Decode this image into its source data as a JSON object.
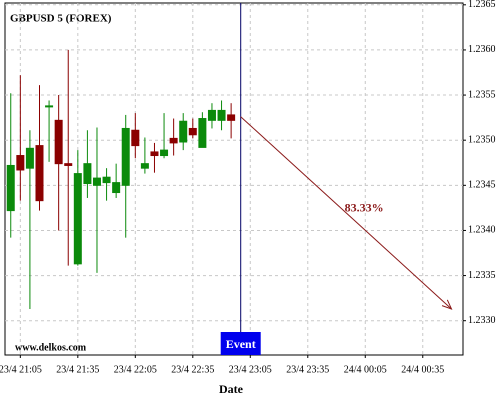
{
  "chart_data": {
    "type": "candlestick",
    "title": "GBPUSD 5 (FOREX)",
    "xlabel": "Date",
    "watermark": "www.delkos.com",
    "x": [
      "23/4 21:00",
      "23/4 21:05",
      "23/4 21:10",
      "23/4 21:15",
      "23/4 21:20",
      "23/4 21:25",
      "23/4 21:30",
      "23/4 21:35",
      "23/4 21:40",
      "23/4 21:45",
      "23/4 21:50",
      "23/4 21:55",
      "23/4 22:00",
      "23/4 22:05",
      "23/4 22:10",
      "23/4 22:15",
      "23/4 22:20",
      "23/4 22:25",
      "23/4 22:30",
      "23/4 22:35",
      "23/4 22:40",
      "23/4 22:45",
      "23/4 22:50",
      "23/4 22:55"
    ],
    "open": [
      1.23422,
      1.23483,
      1.23469,
      1.23494,
      1.23537,
      1.23522,
      1.23474,
      1.23363,
      1.23452,
      1.2345,
      1.23453,
      1.23442,
      1.2345,
      1.23511,
      1.23469,
      1.23487,
      1.23483,
      1.23502,
      1.23498,
      1.23513,
      1.23492,
      1.23522,
      1.23522,
      1.23528
    ],
    "high": [
      1.23552,
      1.23572,
      1.23511,
      1.23561,
      1.23544,
      1.2355,
      1.236,
      1.23489,
      1.23511,
      1.23514,
      1.23469,
      1.23474,
      1.23528,
      1.2353,
      1.23503,
      1.23497,
      1.2353,
      1.23524,
      1.2353,
      1.23524,
      1.23531,
      1.23541,
      1.23544,
      1.23541
    ],
    "low": [
      1.23392,
      1.23433,
      1.23313,
      1.23422,
      1.23476,
      1.234,
      1.23361,
      1.23361,
      1.23436,
      1.23353,
      1.23433,
      1.23436,
      1.23392,
      1.2348,
      1.23463,
      1.23464,
      1.2348,
      1.23483,
      1.23489,
      1.23502,
      1.23492,
      1.23513,
      1.23511,
      1.23502
    ],
    "close": [
      1.23472,
      1.23467,
      1.23491,
      1.23433,
      1.23538,
      1.23474,
      1.23472,
      1.23463,
      1.23474,
      1.23458,
      1.23459,
      1.23453,
      1.23513,
      1.23494,
      1.23474,
      1.23483,
      1.23489,
      1.23497,
      1.23521,
      1.23506,
      1.23524,
      1.23533,
      1.23533,
      1.23522
    ],
    "up_color": "#0b8a0b",
    "down_color": "#8b0000",
    "xlim": [
      "23/4 20:57",
      "24/4 00:56"
    ],
    "xticks": [
      "23/4 21:05",
      "23/4 21:35",
      "23/4 22:05",
      "23/4 22:35",
      "23/4 23:05",
      "23/4 23:35",
      "24/4 00:05",
      "24/4 00:35"
    ],
    "ylim": [
      1.23262,
      1.23652
    ],
    "yticks": [
      {
        "value": 1.233,
        "label": "1.2330"
      },
      1.2335,
      {
        "value": 1.234,
        "label": "1.2340"
      },
      1.2345,
      {
        "value": 1.235,
        "label": "1.2350"
      },
      1.2355,
      {
        "value": 1.236,
        "label": "1.2360"
      },
      1.2365
    ],
    "grid": true,
    "event": {
      "x": "23/4 23:00",
      "label": "Event",
      "color": "#0000ee"
    },
    "arrow": {
      "x": [
        "23/4 23:00",
        "24/4 00:50"
      ],
      "y": [
        1.23526,
        1.23313
      ],
      "label": "83.33%",
      "color": "#8b1a1a"
    }
  }
}
